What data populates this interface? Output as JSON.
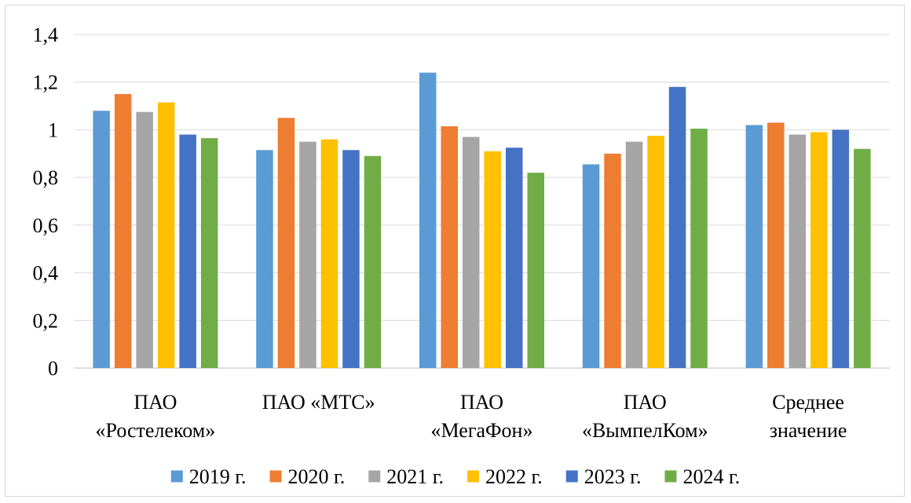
{
  "chart_data": {
    "type": "bar",
    "categories": [
      [
        "ПАО",
        "«Ростелеком»"
      ],
      [
        "ПАО «МТС»"
      ],
      [
        "ПАО",
        "«МегаФон»"
      ],
      [
        "ПАО",
        "«ВымпелКом»"
      ],
      [
        "Среднее",
        "значение"
      ]
    ],
    "series": [
      {
        "name": "2019 г.",
        "color": "#5b9bd5",
        "values": [
          1.08,
          0.915,
          1.24,
          0.855,
          1.02
        ]
      },
      {
        "name": "2020 г.",
        "color": "#ed7d31",
        "values": [
          1.15,
          1.05,
          1.015,
          0.9,
          1.03
        ]
      },
      {
        "name": "2021 г.",
        "color": "#a5a5a5",
        "values": [
          1.075,
          0.95,
          0.97,
          0.95,
          0.98
        ]
      },
      {
        "name": "2022 г.",
        "color": "#ffc000",
        "values": [
          1.115,
          0.96,
          0.91,
          0.975,
          0.99
        ]
      },
      {
        "name": "2023 г.",
        "color": "#4472c4",
        "values": [
          0.98,
          0.915,
          0.925,
          1.18,
          1.0
        ]
      },
      {
        "name": "2024 г.",
        "color": "#70ad47",
        "values": [
          0.965,
          0.89,
          0.82,
          1.005,
          0.92
        ]
      }
    ],
    "yticks": [
      "0",
      "0,2",
      "0,4",
      "0,6",
      "0,8",
      "1",
      "1,2",
      "1,4"
    ],
    "ylim": [
      0,
      1.4
    ],
    "grid": true,
    "legend": "bottom",
    "title": "",
    "xlabel": "",
    "ylabel": ""
  }
}
